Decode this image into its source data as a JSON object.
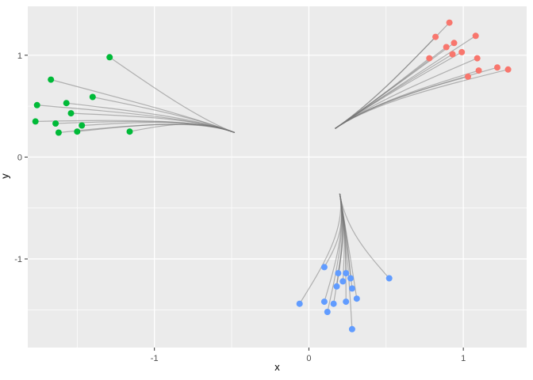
{
  "chart_data": {
    "type": "scatter",
    "title": "",
    "xlabel": "x",
    "ylabel": "y",
    "xlim": [
      -1.82,
      1.41
    ],
    "ylim": [
      -1.87,
      1.48
    ],
    "x_major_ticks": [
      -1,
      0,
      1
    ],
    "y_major_ticks": [
      1,
      0,
      -1
    ],
    "x_minor_ticks": [
      -1.5,
      -0.5,
      0.5
    ],
    "y_minor_ticks": [
      -1.5,
      -0.5,
      0.5
    ],
    "grid": "on",
    "legend": "none",
    "panel_bg": "#EBEBEB",
    "grid_color": "#FFFFFF",
    "tick_label_color": "#4D4D4D",
    "tick_mark_color": "#333333",
    "edge_color": "#737373",
    "edge_opacity": 0.5,
    "point_radius": 4,
    "note": "Three colored point clusters, each connected by bundled gray curves converging to a cluster root",
    "series": [
      {
        "name": "green-cluster",
        "color": "#00BA38",
        "root": [
          -0.48,
          0.24
        ],
        "ctrl": [
          -0.72,
          0.38
        ],
        "points": [
          [
            -1.29,
            0.98
          ],
          [
            -1.67,
            0.76
          ],
          [
            -1.76,
            0.51
          ],
          [
            -1.57,
            0.53
          ],
          [
            -1.4,
            0.59
          ],
          [
            -1.54,
            0.43
          ],
          [
            -1.64,
            0.33
          ],
          [
            -1.47,
            0.31
          ],
          [
            -1.77,
            0.35
          ],
          [
            -1.5,
            0.25
          ],
          [
            -1.62,
            0.24
          ],
          [
            -1.16,
            0.25
          ]
        ]
      },
      {
        "name": "red-cluster",
        "color": "#F8766D",
        "root": [
          0.17,
          0.28
        ],
        "ctrl": [
          0.41,
          0.53
        ],
        "points": [
          [
            0.91,
            1.32
          ],
          [
            0.82,
            1.18
          ],
          [
            0.78,
            0.97
          ],
          [
            0.89,
            1.08
          ],
          [
            0.94,
            1.12
          ],
          [
            0.99,
            1.03
          ],
          [
            1.08,
            1.19
          ],
          [
            1.09,
            0.97
          ],
          [
            1.22,
            0.88
          ],
          [
            1.29,
            0.86
          ],
          [
            1.1,
            0.85
          ],
          [
            1.03,
            0.79
          ],
          [
            0.93,
            1.01
          ]
        ]
      },
      {
        "name": "blue-cluster",
        "color": "#619CFF",
        "root": [
          0.2,
          -0.36
        ],
        "ctrl": [
          0.24,
          -0.71
        ],
        "points": [
          [
            0.1,
            -1.08
          ],
          [
            0.19,
            -1.14
          ],
          [
            0.24,
            -1.14
          ],
          [
            0.22,
            -1.22
          ],
          [
            0.27,
            -1.19
          ],
          [
            0.18,
            -1.27
          ],
          [
            0.28,
            -1.29
          ],
          [
            0.52,
            -1.19
          ],
          [
            0.1,
            -1.42
          ],
          [
            0.16,
            -1.44
          ],
          [
            0.24,
            -1.42
          ],
          [
            0.31,
            -1.39
          ],
          [
            -0.06,
            -1.44
          ],
          [
            0.12,
            -1.52
          ],
          [
            0.28,
            -1.69
          ]
        ]
      }
    ]
  }
}
